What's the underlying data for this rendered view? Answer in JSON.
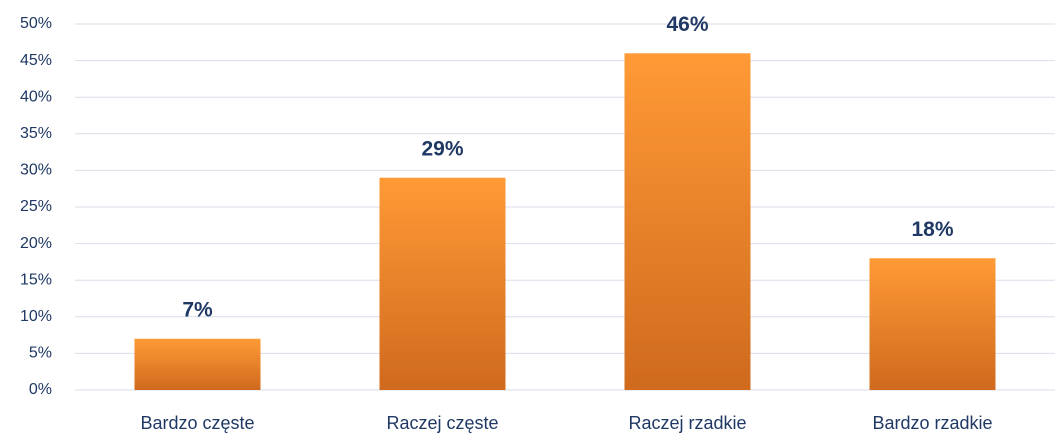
{
  "chart_data": {
    "type": "bar",
    "categories": [
      "Bardzo częste",
      "Raczej częste",
      "Raczej rzadkie",
      "Bardzo rzadkie"
    ],
    "values": [
      7,
      29,
      46,
      18
    ],
    "value_labels": [
      "7%",
      "29%",
      "46%",
      "18%"
    ],
    "color": "#ff9a36",
    "ylim": [
      0,
      50
    ],
    "yticks": [
      {
        "value": 0,
        "label": "0%"
      },
      {
        "value": 5,
        "label": "5%"
      },
      {
        "value": 10,
        "label": "10%"
      },
      {
        "value": 15,
        "label": "15%"
      },
      {
        "value": 20,
        "label": "20%"
      },
      {
        "value": 25,
        "label": "25%"
      },
      {
        "value": 30,
        "label": "30%"
      },
      {
        "value": 35,
        "label": "35%"
      },
      {
        "value": 40,
        "label": "40%"
      },
      {
        "value": 45,
        "label": "45%"
      },
      {
        "value": 50,
        "label": "50%"
      }
    ],
    "grid": true
  }
}
